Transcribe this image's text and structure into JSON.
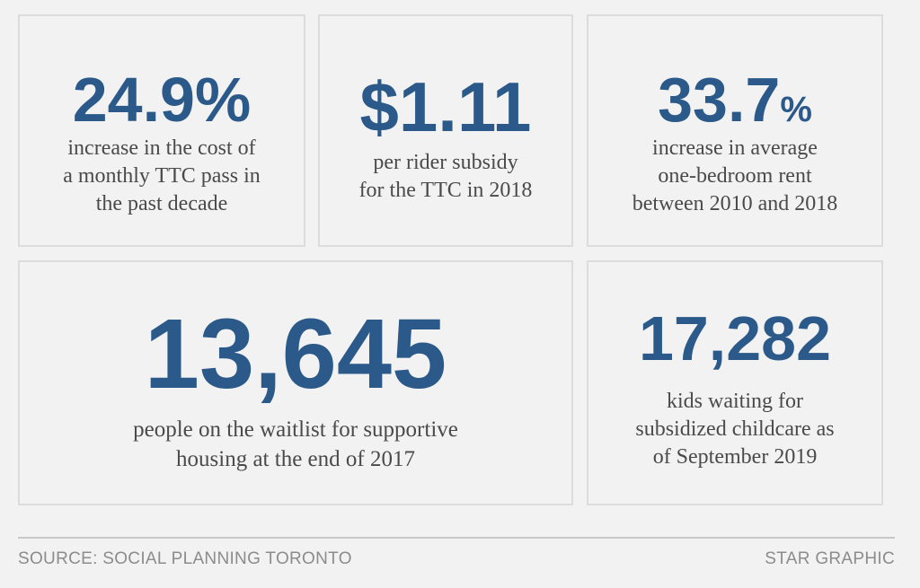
{
  "stats": [
    {
      "value": "24.9%",
      "description": "increase in the cost of a monthly TTC pass in the past decade"
    },
    {
      "value": "$1.11",
      "description": "per rider subsidy for the TTC in 2018"
    },
    {
      "value": "33.7",
      "unit": "%",
      "description": "increase in average one-bedroom rent between 2010 and 2018"
    },
    {
      "value": "13,645",
      "description": "people on the waitlist for supportive housing at the end of 2017"
    },
    {
      "value": "17,282",
      "description": "kids waiting for subsidized childcare as of September 2019"
    }
  ],
  "description_lines": {
    "s0": [
      "increase in the cost of",
      "a monthly TTC pass in",
      "the past decade"
    ],
    "s1": [
      "per rider subsidy",
      "for the TTC in 2018"
    ],
    "s2": [
      "increase in average",
      "one-bedroom rent",
      "between 2010 and 2018"
    ],
    "s3": [
      "people on the waitlist for supportive",
      "housing at the end of 2017"
    ],
    "s4": [
      "kids waiting for",
      "subsidized childcare as",
      "of September 2019"
    ]
  },
  "footer": {
    "source": "SOURCE: SOCIAL PLANNING TORONTO",
    "credit": "STAR GRAPHIC"
  },
  "colors": {
    "accent": "#2b5a8a",
    "text": "#4a4a4a",
    "background": "#f2f2f2"
  }
}
